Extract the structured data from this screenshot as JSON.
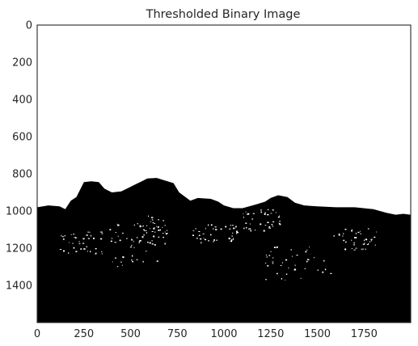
{
  "chart_data": {
    "type": "heatmap",
    "title": "Thresholded Binary Image",
    "xlabel": "",
    "ylabel": "",
    "xlim": [
      0,
      2000
    ],
    "ylim": [
      1600,
      0
    ],
    "x_ticks": [
      0,
      250,
      500,
      750,
      1000,
      1250,
      1500,
      1750
    ],
    "y_ticks": [
      0,
      200,
      400,
      600,
      800,
      1000,
      1200,
      1400
    ],
    "grid": false,
    "colormap": [
      "#000000",
      "#ffffff"
    ],
    "image_description_values": {
      "upper_region": 1,
      "lower_region": 0
    },
    "silhouette_y": [
      [
        0,
        980
      ],
      [
        60,
        970
      ],
      [
        120,
        975
      ],
      [
        150,
        990
      ],
      [
        180,
        945
      ],
      [
        210,
        925
      ],
      [
        250,
        845
      ],
      [
        290,
        840
      ],
      [
        330,
        845
      ],
      [
        360,
        880
      ],
      [
        400,
        900
      ],
      [
        450,
        895
      ],
      [
        490,
        875
      ],
      [
        520,
        860
      ],
      [
        560,
        840
      ],
      [
        590,
        825
      ],
      [
        640,
        822
      ],
      [
        680,
        835
      ],
      [
        730,
        850
      ],
      [
        760,
        900
      ],
      [
        820,
        945
      ],
      [
        860,
        930
      ],
      [
        930,
        935
      ],
      [
        970,
        950
      ],
      [
        1000,
        970
      ],
      [
        1050,
        985
      ],
      [
        1100,
        985
      ],
      [
        1170,
        965
      ],
      [
        1220,
        950
      ],
      [
        1250,
        930
      ],
      [
        1290,
        915
      ],
      [
        1340,
        925
      ],
      [
        1380,
        955
      ],
      [
        1430,
        970
      ],
      [
        1500,
        975
      ],
      [
        1600,
        980
      ],
      [
        1700,
        980
      ],
      [
        1800,
        990
      ],
      [
        1870,
        1010
      ],
      [
        1920,
        1020
      ],
      [
        1960,
        1015
      ],
      [
        2000,
        1020
      ]
    ]
  }
}
